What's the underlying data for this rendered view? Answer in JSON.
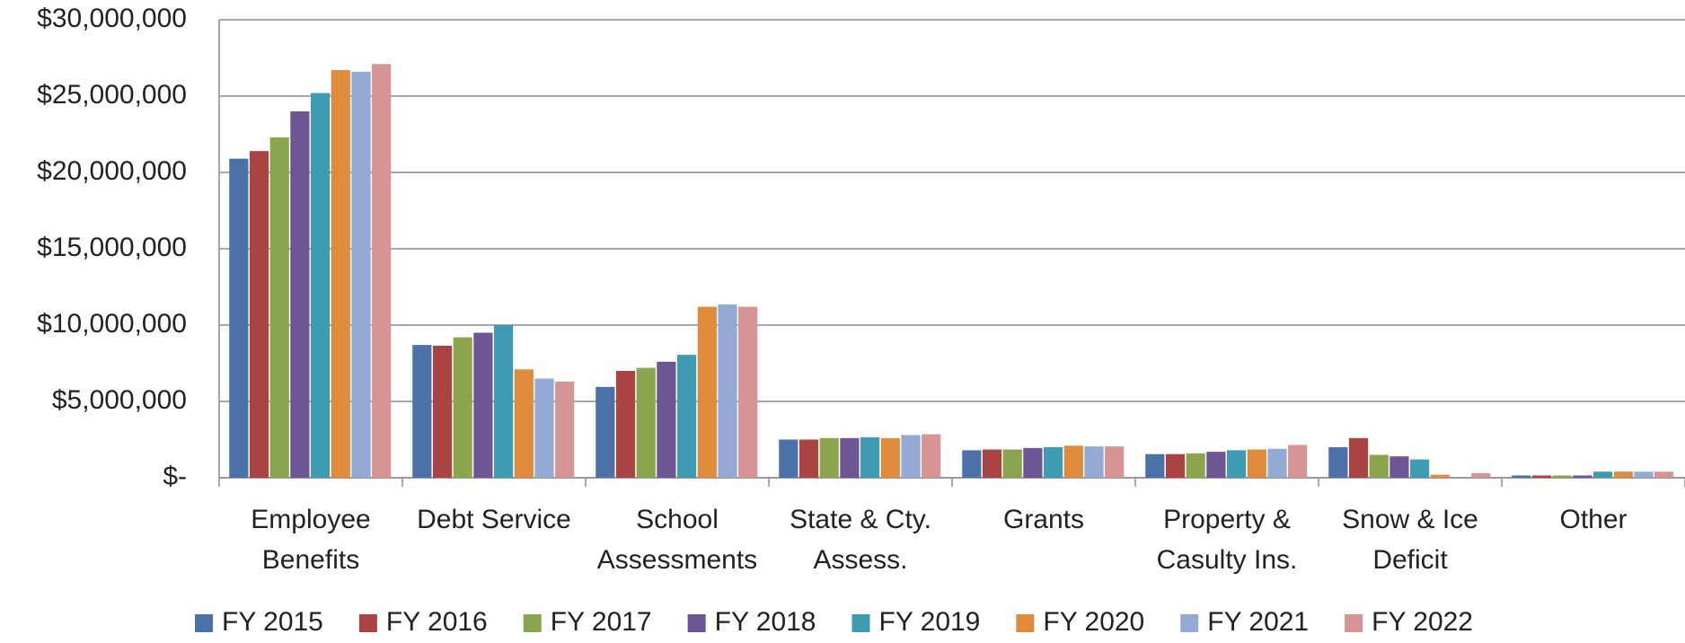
{
  "chart_data": {
    "type": "bar",
    "categories": [
      "Employee Benefits",
      "Debt Service",
      "School Assessments",
      "State & Cty. Assess.",
      "Grants",
      "Property & Casulty Ins.",
      "Snow & Ice Deficit",
      "Other"
    ],
    "series": [
      {
        "name": "FY 2015",
        "color": "#4a72a8",
        "values": [
          20900000,
          8700000,
          5950000,
          2500000,
          1800000,
          1550000,
          2000000,
          150000
        ]
      },
      {
        "name": "FY 2016",
        "color": "#a94443",
        "values": [
          21400000,
          8650000,
          7000000,
          2500000,
          1850000,
          1550000,
          2600000,
          150000
        ]
      },
      {
        "name": "FY 2017",
        "color": "#8aa54d",
        "values": [
          22300000,
          9200000,
          7200000,
          2600000,
          1850000,
          1600000,
          1500000,
          150000
        ]
      },
      {
        "name": "FY 2018",
        "color": "#6e5594",
        "values": [
          24000000,
          9500000,
          7600000,
          2600000,
          1950000,
          1700000,
          1400000,
          150000
        ]
      },
      {
        "name": "FY 2019",
        "color": "#3f9bb2",
        "values": [
          25200000,
          10000000,
          8050000,
          2650000,
          2000000,
          1800000,
          1200000,
          400000
        ]
      },
      {
        "name": "FY 2020",
        "color": "#e08a3c",
        "values": [
          26700000,
          7100000,
          11200000,
          2600000,
          2100000,
          1850000,
          200000,
          400000
        ]
      },
      {
        "name": "FY 2021",
        "color": "#94a9d3",
        "values": [
          26600000,
          6500000,
          11350000,
          2800000,
          2050000,
          1900000,
          0,
          400000
        ]
      },
      {
        "name": "FY 2022",
        "color": "#d69594",
        "values": [
          27100000,
          6300000,
          11200000,
          2850000,
          2050000,
          2150000,
          300000,
          400000
        ]
      }
    ],
    "ylim": [
      0,
      30000000
    ],
    "yticks": [
      {
        "value": 0,
        "label": "$-"
      },
      {
        "value": 5000000,
        "label": "$5,000,000"
      },
      {
        "value": 10000000,
        "label": "$10,000,000"
      },
      {
        "value": 15000000,
        "label": "$15,000,000"
      },
      {
        "value": 20000000,
        "label": "$20,000,000"
      },
      {
        "value": 25000000,
        "label": "$25,000,000"
      },
      {
        "value": 30000000,
        "label": "$30,000,000"
      }
    ],
    "grid": true,
    "legend": "bottom"
  }
}
